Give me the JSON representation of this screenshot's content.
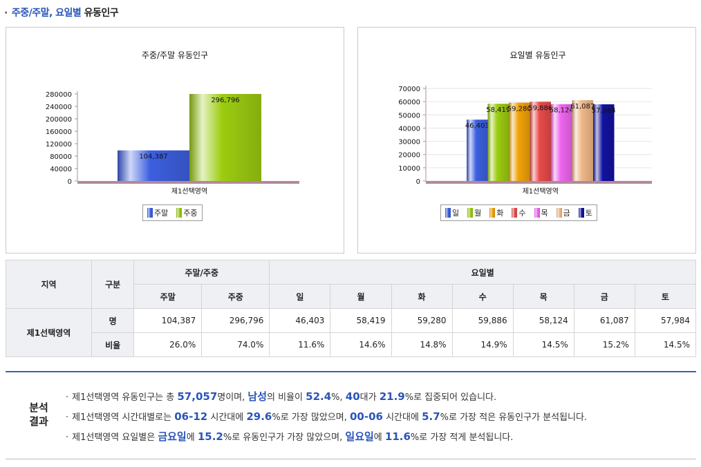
{
  "section": {
    "bullet": "·",
    "title_highlight": "주중/주말, 요일별",
    "title_rest": " 유동인구"
  },
  "chart_data": [
    {
      "type": "bar",
      "title": "주중/주말 유동인구",
      "categories": [
        "제1선택영역"
      ],
      "series": [
        {
          "name": "주말",
          "values": [
            104387
          ],
          "label": "104,387",
          "color": "#3d5fe0"
        },
        {
          "name": "주중",
          "values": [
            296796
          ],
          "label": "296,796",
          "color": "#9ccc10"
        }
      ],
      "yticks": [
        "280000",
        "240000",
        "200000",
        "160000",
        "120000",
        "80000",
        "40000",
        "0"
      ],
      "ylim": [
        0,
        296796
      ],
      "legend": "bottom",
      "grid": false
    },
    {
      "type": "bar",
      "title": "요일별 유동인구",
      "categories": [
        "제1선택영역"
      ],
      "series": [
        {
          "name": "일",
          "values": [
            46403
          ],
          "label": "46,403",
          "color": "#3d5fe0"
        },
        {
          "name": "월",
          "values": [
            58419
          ],
          "label": "58,419",
          "color": "#9ccc10"
        },
        {
          "name": "화",
          "values": [
            59280
          ],
          "label": "59,280",
          "color": "#f0a20a"
        },
        {
          "name": "수",
          "values": [
            59886
          ],
          "label": "59,886",
          "color": "#e84a4a"
        },
        {
          "name": "목",
          "values": [
            58124
          ],
          "label": "58,124",
          "color": "#ee66ee"
        },
        {
          "name": "금",
          "values": [
            61087
          ],
          "label": "61,087",
          "color": "#f0b888"
        },
        {
          "name": "토",
          "values": [
            57984
          ],
          "label": "57,984",
          "color": "#1212a0"
        }
      ],
      "yticks": [
        "70000",
        "60000",
        "50000",
        "40000",
        "30000",
        "20000",
        "10000",
        "0"
      ],
      "ylim": [
        0,
        70000
      ],
      "legend": "bottom",
      "grid": true
    }
  ],
  "table": {
    "h_region": "지역",
    "h_type": "구분",
    "h_weekend_weekday": "주말/주중",
    "h_dayofweek": "요일별",
    "sub": [
      "주말",
      "주중",
      "일",
      "월",
      "화",
      "수",
      "목",
      "금",
      "토"
    ],
    "region": "제1선택영역",
    "row1_label": "명",
    "row1": [
      "104,387",
      "296,796",
      "46,403",
      "58,419",
      "59,280",
      "59,886",
      "58,124",
      "61,087",
      "57,984"
    ],
    "row2_label": "비율",
    "row2": [
      "26.0%",
      "74.0%",
      "11.6%",
      "14.6%",
      "14.8%",
      "14.9%",
      "14.5%",
      "15.2%",
      "14.5%"
    ]
  },
  "analysis": {
    "label_1": "분석",
    "label_2": "결과",
    "bullet": "·",
    "l1": {
      "a": "제1선택영역 유동인구는 총 ",
      "b1": "57,057",
      "c": "명이며, ",
      "b2": "남성",
      "d": "의 비율이 ",
      "b3": "52.4",
      "e": "%, ",
      "b4": "40",
      "f": "대가 ",
      "b5": "21.9",
      "g": "%로 집중되어 있습니다."
    },
    "l2": {
      "a": "제1선택영역 시간대별로는 ",
      "b1": "06-12",
      "c": " 시간대에 ",
      "b2": "29.6",
      "d": "%로 가장 많았으며, ",
      "b3": "00-06",
      "e": " 시간대에 ",
      "b4": "5.7",
      "f": "%로 가장 적은 유동인구가 분석됩니다."
    },
    "l3": {
      "a": "제1선택영역 요일별은 ",
      "b1": "금요일",
      "c": "에 ",
      "b2": "15.2",
      "d": "%로 유동인구가 가장 많았으며, ",
      "b3": "일요일",
      "e": "에 ",
      "b4": "11.6",
      "f": "%로 가장 적게 분석됩니다."
    }
  }
}
